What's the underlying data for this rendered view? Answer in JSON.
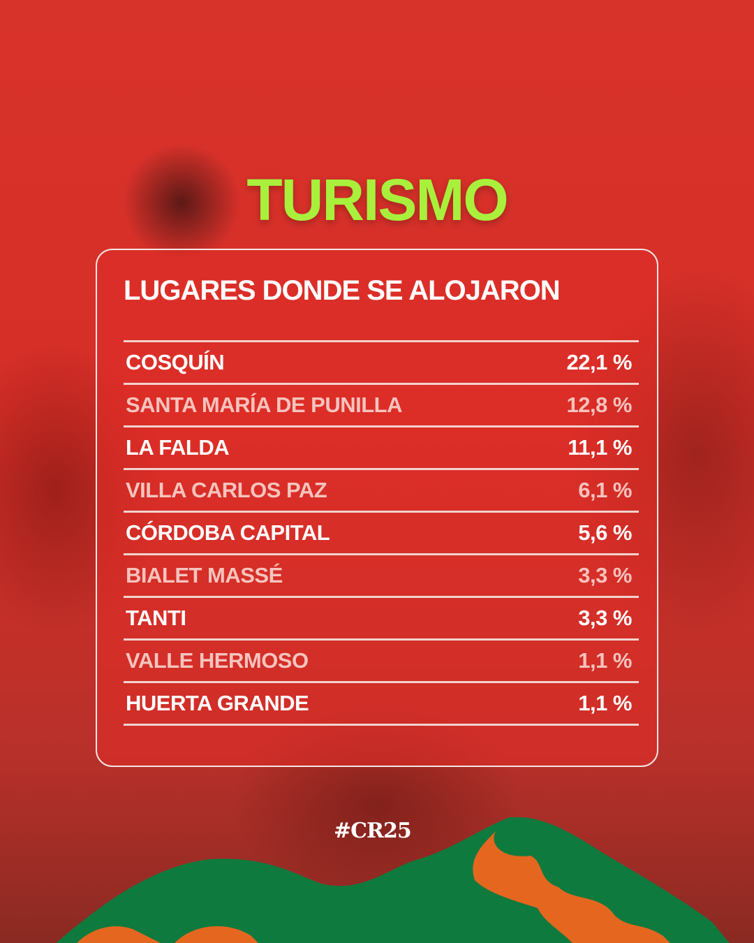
{
  "title": "TURISMO",
  "subtitle": "LUGARES DONDE SE ALOJARON",
  "rows": [
    {
      "place": "COSQUÍN",
      "value": "22,1 %"
    },
    {
      "place": "SANTA MARÍA DE PUNILLA",
      "value": "12,8 %"
    },
    {
      "place": "LA FALDA",
      "value": "11,1 %"
    },
    {
      "place": "VILLA CARLOS PAZ",
      "value": "6,1 %"
    },
    {
      "place": "CÓRDOBA CAPITAL",
      "value": "5,6 %"
    },
    {
      "place": "BIALET MASSÉ",
      "value": "3,3 %"
    },
    {
      "place": "TANTI",
      "value": "3,3 %"
    },
    {
      "place": "VALLE HERMOSO",
      "value": "1,1 %"
    },
    {
      "place": "HUERTA GRANDE",
      "value": "1,1 %"
    }
  ],
  "hashtag": "#CR25",
  "colors": {
    "title": "#a8f03c",
    "background": "#d8332b",
    "mountain_green": "#0f7a3e",
    "mountain_orange": "#e5661f"
  }
}
